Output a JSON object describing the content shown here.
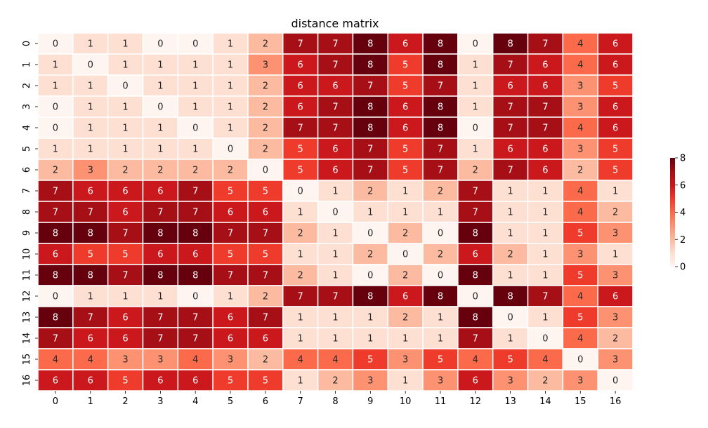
{
  "chart_data": {
    "type": "heatmap",
    "title": "distance matrix",
    "xlabel": "",
    "ylabel": "",
    "x_labels": [
      "0",
      "1",
      "2",
      "3",
      "4",
      "5",
      "6",
      "7",
      "8",
      "9",
      "10",
      "11",
      "12",
      "13",
      "14",
      "15",
      "16"
    ],
    "y_labels": [
      "0",
      "1",
      "2",
      "3",
      "4",
      "5",
      "6",
      "7",
      "8",
      "9",
      "10",
      "11",
      "12",
      "13",
      "14",
      "15",
      "16"
    ],
    "values": [
      [
        0,
        1,
        1,
        0,
        0,
        1,
        2,
        7,
        7,
        8,
        6,
        8,
        0,
        8,
        7,
        4,
        6
      ],
      [
        1,
        0,
        1,
        1,
        1,
        1,
        3,
        6,
        7,
        8,
        5,
        8,
        1,
        7,
        6,
        4,
        6
      ],
      [
        1,
        1,
        0,
        1,
        1,
        1,
        2,
        6,
        6,
        7,
        5,
        7,
        1,
        6,
        6,
        3,
        5
      ],
      [
        0,
        1,
        1,
        0,
        1,
        1,
        2,
        6,
        7,
        8,
        6,
        8,
        1,
        7,
        7,
        3,
        6
      ],
      [
        0,
        1,
        1,
        1,
        0,
        1,
        2,
        7,
        7,
        8,
        6,
        8,
        0,
        7,
        7,
        4,
        6
      ],
      [
        1,
        1,
        1,
        1,
        1,
        0,
        2,
        5,
        6,
        7,
        5,
        7,
        1,
        6,
        6,
        3,
        5
      ],
      [
        2,
        3,
        2,
        2,
        2,
        2,
        0,
        5,
        6,
        7,
        5,
        7,
        2,
        7,
        6,
        2,
        5
      ],
      [
        7,
        6,
        6,
        6,
        7,
        5,
        5,
        0,
        1,
        2,
        1,
        2,
        7,
        1,
        1,
        4,
        1
      ],
      [
        7,
        7,
        6,
        7,
        7,
        6,
        6,
        1,
        0,
        1,
        1,
        1,
        7,
        1,
        1,
        4,
        2
      ],
      [
        8,
        8,
        7,
        8,
        8,
        7,
        7,
        2,
        1,
        0,
        2,
        0,
        8,
        1,
        1,
        5,
        3
      ],
      [
        6,
        5,
        5,
        6,
        6,
        5,
        5,
        1,
        1,
        2,
        0,
        2,
        6,
        2,
        1,
        3,
        1
      ],
      [
        8,
        8,
        7,
        8,
        8,
        7,
        7,
        2,
        1,
        0,
        2,
        0,
        8,
        1,
        1,
        5,
        3
      ],
      [
        0,
        1,
        1,
        1,
        0,
        1,
        2,
        7,
        7,
        8,
        6,
        8,
        0,
        8,
        7,
        4,
        6
      ],
      [
        8,
        7,
        6,
        7,
        7,
        6,
        7,
        1,
        1,
        1,
        2,
        1,
        8,
        0,
        1,
        5,
        3
      ],
      [
        7,
        6,
        6,
        7,
        7,
        6,
        6,
        1,
        1,
        1,
        1,
        1,
        7,
        1,
        0,
        4,
        2
      ],
      [
        4,
        4,
        3,
        3,
        4,
        3,
        2,
        4,
        4,
        5,
        3,
        5,
        4,
        5,
        4,
        0,
        3
      ],
      [
        6,
        6,
        5,
        6,
        6,
        5,
        5,
        1,
        2,
        3,
        1,
        3,
        6,
        3,
        2,
        3,
        0
      ]
    ],
    "vmin": 0,
    "vmax": 8,
    "colormap": "Reds",
    "cell_border_color": "#ffffff",
    "annotations": true,
    "colorbar": {
      "ticks": [
        0,
        2,
        4,
        6,
        8
      ],
      "tick_labels": [
        "0",
        "2",
        "4",
        "6",
        "8"
      ]
    }
  }
}
